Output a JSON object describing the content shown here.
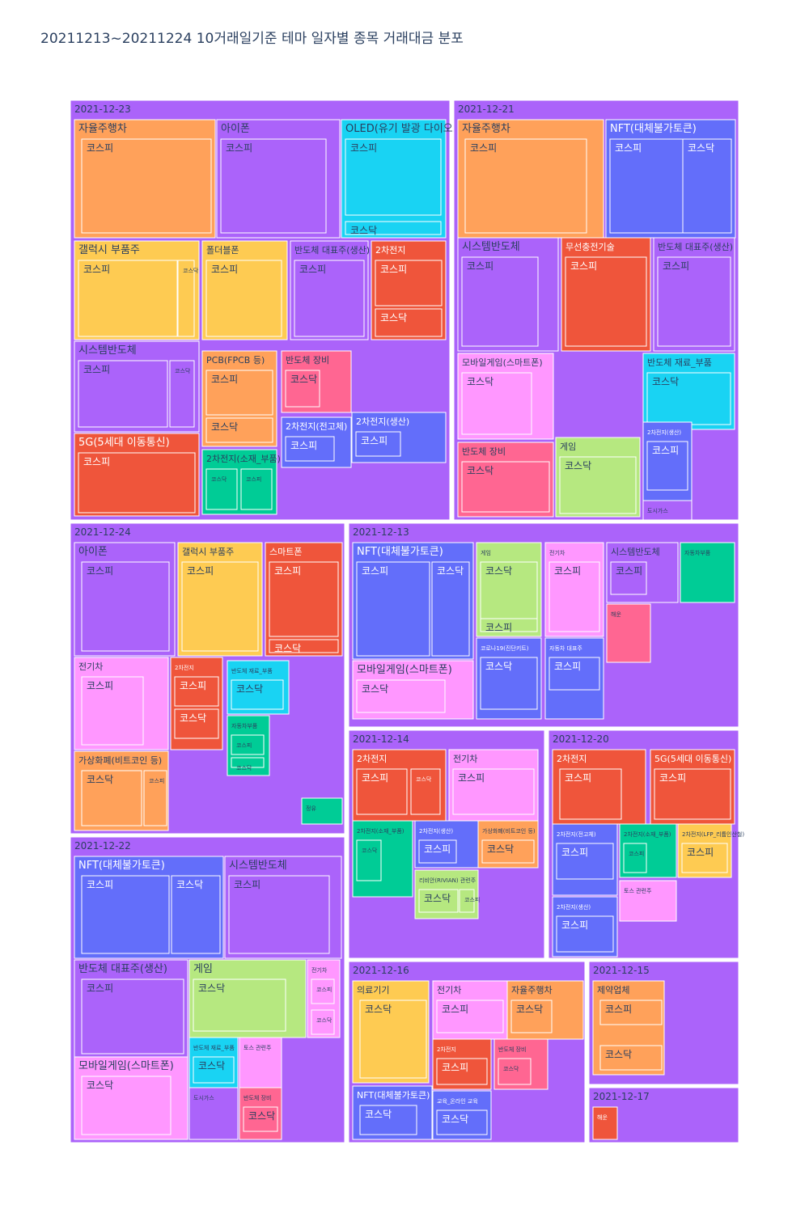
{
  "title": "20211213~20211224 10거래일기준 테마 일자별 종목 거래대금 분포",
  "colors": {
    "purple": "#ab63fa",
    "orange": "#ffa15a",
    "blue": "#636efa",
    "cyan": "#19d3f3",
    "yellow": "#fecb52",
    "red": "#ef553b",
    "pink": "#ff6692",
    "green": "#00cc96",
    "lightgreen": "#b6e880",
    "lightpink": "#ff97ff"
  },
  "chart_data": {
    "type": "treemap",
    "days": [
      {
        "date": "2021-12-23",
        "themes": [
          {
            "name": "자율주행차",
            "color": "orange",
            "markets": [
              "코스피"
            ]
          },
          {
            "name": "아이폰",
            "color": "purple",
            "markets": [
              "코스피"
            ]
          },
          {
            "name": "OLED(유기 발광 다이오드)",
            "color": "cyan",
            "markets": [
              "코스피",
              "코스닥"
            ]
          },
          {
            "name": "갤럭시 부품주",
            "color": "yellow",
            "markets": [
              "코스피",
              "코스닥"
            ]
          },
          {
            "name": "폴더블폰",
            "color": "yellow",
            "markets": [
              "코스피"
            ]
          },
          {
            "name": "반도체 대표주(생산)",
            "color": "purple",
            "markets": [
              "코스피"
            ]
          },
          {
            "name": "2차전지",
            "color": "red",
            "markets": [
              "코스피",
              "코스닥"
            ]
          },
          {
            "name": "시스템반도체",
            "color": "purple",
            "markets": [
              "코스피",
              "코스닥"
            ]
          },
          {
            "name": "5G(5세대 이동통신)",
            "color": "red",
            "markets": [
              "코스피"
            ]
          },
          {
            "name": "PCB(FPCB 등)",
            "color": "orange",
            "markets": [
              "코스피",
              "코스닥"
            ]
          },
          {
            "name": "반도체 장비",
            "color": "pink",
            "markets": [
              "코스닥"
            ]
          },
          {
            "name": "2차전지(전고체)",
            "color": "blue",
            "markets": [
              "코스피"
            ]
          },
          {
            "name": "2차전지(소재_부품)",
            "color": "green",
            "markets": [
              "코스닥",
              "코스피"
            ]
          },
          {
            "name": "2차전지(생산)",
            "color": "blue",
            "markets": [
              "코스피"
            ]
          }
        ]
      },
      {
        "date": "2021-12-21",
        "themes": [
          {
            "name": "자율주행차",
            "color": "orange",
            "markets": [
              "코스피"
            ]
          },
          {
            "name": "NFT(대체불가토큰)",
            "color": "blue",
            "markets": [
              "코스피",
              "코스닥"
            ]
          },
          {
            "name": "시스템반도체",
            "color": "purple",
            "markets": [
              "코스피"
            ]
          },
          {
            "name": "무선충전기술",
            "color": "red",
            "markets": [
              "코스피"
            ]
          },
          {
            "name": "반도체 대표주(생산)",
            "color": "purple",
            "markets": [
              "코스피"
            ]
          },
          {
            "name": "모바일게임(스마트폰)",
            "color": "lightpink",
            "markets": [
              "코스닥"
            ]
          },
          {
            "name": "반도체 재료_부품",
            "color": "cyan",
            "markets": [
              "코스닥"
            ]
          },
          {
            "name": "반도체 장비",
            "color": "pink",
            "markets": [
              "코스닥"
            ]
          },
          {
            "name": "게임",
            "color": "lightgreen",
            "markets": [
              "코스닥"
            ]
          },
          {
            "name": "2차전지(생산)",
            "color": "blue",
            "markets": [
              "코스피"
            ]
          },
          {
            "name": "도시가스",
            "color": "purple",
            "markets": []
          }
        ]
      },
      {
        "date": "2021-12-24",
        "themes": [
          {
            "name": "아이폰",
            "color": "purple",
            "markets": [
              "코스피"
            ]
          },
          {
            "name": "갤럭시 부품주",
            "color": "yellow",
            "markets": [
              "코스피"
            ]
          },
          {
            "name": "스마트폰",
            "color": "red",
            "markets": [
              "코스피",
              "코스닥"
            ]
          },
          {
            "name": "전기차",
            "color": "lightpink",
            "markets": [
              "코스피"
            ]
          },
          {
            "name": "2차전지",
            "color": "red",
            "markets": [
              "코스피",
              "코스닥"
            ]
          },
          {
            "name": "반도체 재료_부품",
            "color": "cyan",
            "markets": [
              "코스닥"
            ]
          },
          {
            "name": "가상화폐(비트코인 등)",
            "color": "orange",
            "markets": [
              "코스닥",
              "코스피"
            ]
          },
          {
            "name": "자동차부품",
            "color": "green",
            "markets": [
              "코스피",
              "코스닥"
            ]
          },
          {
            "name": "정유",
            "color": "green",
            "markets": []
          }
        ]
      },
      {
        "date": "2021-12-13",
        "themes": [
          {
            "name": "NFT(대체불가토큰)",
            "color": "blue",
            "markets": [
              "코스피",
              "코스닥"
            ]
          },
          {
            "name": "게임",
            "color": "lightgreen",
            "markets": [
              "코스닥",
              "코스피"
            ]
          },
          {
            "name": "전기차",
            "color": "lightpink",
            "markets": [
              "코스피"
            ]
          },
          {
            "name": "시스템반도체",
            "color": "purple",
            "markets": [
              "코스피"
            ]
          },
          {
            "name": "자동차부품",
            "color": "green",
            "markets": []
          },
          {
            "name": "모바일게임(스마트폰)",
            "color": "lightpink",
            "markets": [
              "코스닥"
            ]
          },
          {
            "name": "코로나19(진단키트)",
            "color": "blue",
            "markets": [
              "코스닥"
            ]
          },
          {
            "name": "자동차 대표주",
            "color": "blue",
            "markets": [
              "코스피"
            ]
          },
          {
            "name": "해운",
            "color": "pink",
            "markets": []
          }
        ]
      },
      {
        "date": "2021-12-14",
        "themes": [
          {
            "name": "2차전지",
            "color": "red",
            "markets": [
              "코스피",
              "코스닥"
            ]
          },
          {
            "name": "전기차",
            "color": "lightpink",
            "markets": [
              "코스피"
            ]
          },
          {
            "name": "2차전지(소재_부품)",
            "color": "green",
            "markets": [
              "코스닥"
            ]
          },
          {
            "name": "2차전지(생산)",
            "color": "blue",
            "markets": [
              "코스피"
            ]
          },
          {
            "name": "가상화폐(비트코인 등)",
            "color": "orange",
            "markets": [
              "코스닥"
            ]
          },
          {
            "name": "리비안(RIVIAN) 관련주",
            "color": "lightgreen",
            "markets": [
              "코스닥",
              "코스피"
            ]
          }
        ]
      },
      {
        "date": "2021-12-20",
        "themes": [
          {
            "name": "2차전지",
            "color": "red",
            "markets": [
              "코스피"
            ]
          },
          {
            "name": "5G(5세대 이동통신)",
            "color": "red",
            "markets": [
              "코스피"
            ]
          },
          {
            "name": "2차전지(전고체)",
            "color": "blue",
            "markets": [
              "코스피"
            ]
          },
          {
            "name": "2차전지(소재_부품)",
            "color": "green",
            "markets": [
              "코스피"
            ]
          },
          {
            "name": "2차전지(LFP_리튬인산철)",
            "color": "yellow",
            "markets": [
              "코스피"
            ]
          },
          {
            "name": "2차전지(생산)",
            "color": "blue",
            "markets": [
              "코스피"
            ]
          },
          {
            "name": "토스 관련주",
            "color": "lightpink",
            "markets": []
          }
        ]
      },
      {
        "date": "2021-12-22",
        "themes": [
          {
            "name": "NFT(대체불가토큰)",
            "color": "blue",
            "markets": [
              "코스피",
              "코스닥"
            ]
          },
          {
            "name": "시스템반도체",
            "color": "purple",
            "markets": [
              "코스피"
            ]
          },
          {
            "name": "반도체 대표주(생산)",
            "color": "purple",
            "markets": [
              "코스피"
            ]
          },
          {
            "name": "게임",
            "color": "lightgreen",
            "markets": [
              "코스닥"
            ]
          },
          {
            "name": "전기차",
            "color": "lightpink",
            "markets": [
              "코스피",
              "코스닥"
            ]
          },
          {
            "name": "모바일게임(스마트폰)",
            "color": "lightpink",
            "markets": [
              "코스닥"
            ]
          },
          {
            "name": "반도체 재료_부품",
            "color": "cyan",
            "markets": [
              "코스닥"
            ]
          },
          {
            "name": "토스 관련주",
            "color": "lightpink",
            "markets": []
          },
          {
            "name": "도시가스",
            "color": "purple",
            "markets": []
          },
          {
            "name": "반도체 장비",
            "color": "pink",
            "markets": [
              "코스닥"
            ]
          }
        ]
      },
      {
        "date": "2021-12-16",
        "themes": [
          {
            "name": "의료기기",
            "color": "yellow",
            "markets": [
              "코스닥"
            ]
          },
          {
            "name": "전기차",
            "color": "lightpink",
            "markets": [
              "코스피"
            ]
          },
          {
            "name": "자율주행차",
            "color": "orange",
            "markets": [
              "코스닥"
            ]
          },
          {
            "name": "2차전지",
            "color": "red",
            "markets": [
              "코스피"
            ]
          },
          {
            "name": "반도체 장비",
            "color": "pink",
            "markets": [
              "코스닥"
            ]
          },
          {
            "name": "NFT(대체불가토큰)",
            "color": "blue",
            "markets": [
              "코스닥"
            ]
          },
          {
            "name": "교육_온라인 교육",
            "color": "blue",
            "markets": [
              "코스닥"
            ]
          }
        ]
      },
      {
        "date": "2021-12-15",
        "themes": [
          {
            "name": "제약업체",
            "color": "orange",
            "markets": [
              "코스피",
              "코스닥"
            ]
          }
        ]
      },
      {
        "date": "2021-12-17",
        "themes": [
          {
            "name": "해운",
            "color": "red",
            "markets": []
          }
        ]
      }
    ]
  }
}
